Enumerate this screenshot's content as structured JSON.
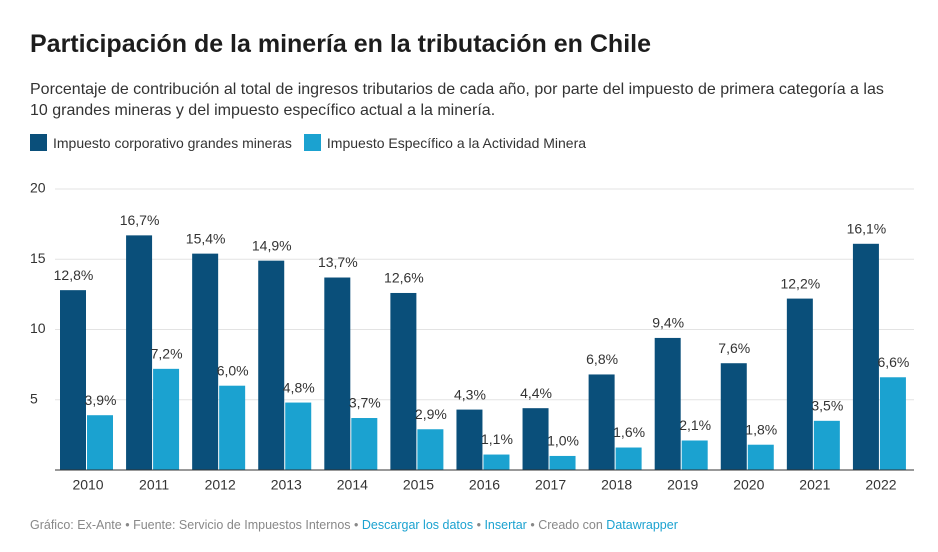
{
  "chart_data": {
    "type": "bar",
    "title": "Participación de la minería en la tributación en Chile",
    "subtitle": "Porcentaje de contribución al total de ingresos tributarios de cada año, por parte del impuesto de primera categoría a las 10 grandes mineras y del impuesto específico actual a la minería.",
    "categories": [
      "2010",
      "2011",
      "2012",
      "2013",
      "2014",
      "2015",
      "2016",
      "2017",
      "2018",
      "2019",
      "2020",
      "2021",
      "2022"
    ],
    "series": [
      {
        "name": "Impuesto corporativo grandes mineras",
        "color": "#0a4f7a",
        "values": [
          12.8,
          16.7,
          15.4,
          14.9,
          13.7,
          12.6,
          4.3,
          4.4,
          6.8,
          9.4,
          7.6,
          12.2,
          16.1
        ],
        "value_labels": [
          "12,8%",
          "16,7%",
          "15,4%",
          "14,9%",
          "13,7%",
          "12,6%",
          "4,3%",
          "4,4%",
          "6,8%",
          "9,4%",
          "7,6%",
          "12,2%",
          "16,1%"
        ]
      },
      {
        "name": "Impuesto Específico a la Actividad Minera",
        "color": "#1ba2d0",
        "values": [
          3.9,
          7.2,
          6.0,
          4.8,
          3.7,
          2.9,
          1.1,
          1.0,
          1.6,
          2.1,
          1.8,
          3.5,
          6.6
        ],
        "value_labels": [
          "3,9%",
          "7,2%",
          "6,0%",
          "4,8%",
          "3,7%",
          "2,9%",
          "1,1%",
          "1,0%",
          "1,6%",
          "2,1%",
          "1,8%",
          "3,5%",
          "6,6%"
        ]
      }
    ],
    "ylim": [
      0,
      20
    ],
    "yticks": [
      5,
      10,
      15,
      20
    ],
    "grid": true
  },
  "footer": {
    "credit": "Gráfico: Ex-Ante",
    "separator": "•",
    "source": "Fuente: Servicio de Impuestos Internos",
    "download": "Descargar los datos",
    "embed": "Insertar",
    "created": "Creado con",
    "tool": "Datawrapper"
  }
}
